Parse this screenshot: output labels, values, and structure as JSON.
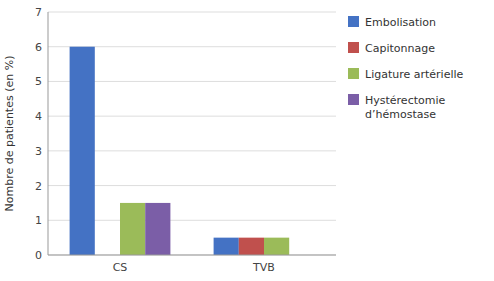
{
  "chart_data": {
    "type": "bar",
    "categories": [
      "CS",
      "TVB"
    ],
    "series": [
      {
        "name": "Embolisation",
        "color": "#4472C4",
        "values": [
          6.0,
          0.5
        ]
      },
      {
        "name": "Capitonnage",
        "color": "#C0504D",
        "values": [
          0.0,
          0.5
        ]
      },
      {
        "name": "Ligature artérielle",
        "color": "#9BBB59",
        "values": [
          1.5,
          0.5
        ]
      },
      {
        "name": "Hystérectomie\nd’hémostase",
        "color": "#7B5EA7",
        "values": [
          1.5,
          0.0
        ]
      }
    ],
    "ylabel": "Nombre de patientes (en %)",
    "ylim": [
      0,
      7
    ],
    "yticks": [
      0,
      1,
      2,
      3,
      4,
      5,
      6,
      7
    ],
    "grid": true,
    "legend": "right"
  }
}
